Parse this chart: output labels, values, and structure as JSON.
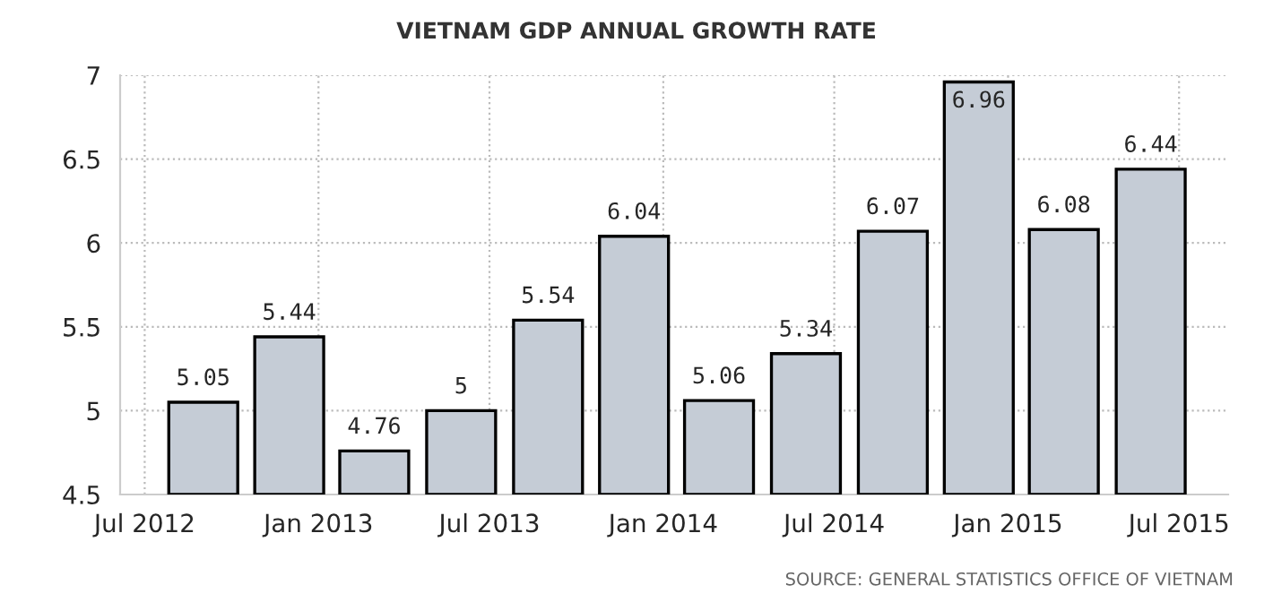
{
  "chart_data": {
    "type": "bar",
    "title": "VIETNAM GDP ANNUAL GROWTH RATE",
    "x": [
      "2012-09-01",
      "2012-12-01",
      "2013-03-01",
      "2013-06-01",
      "2013-09-01",
      "2013-12-01",
      "2014-03-01",
      "2014-06-01",
      "2014-09-01",
      "2014-12-01",
      "2015-03-01",
      "2015-06-01"
    ],
    "values": [
      5.05,
      5.44,
      4.76,
      5,
      5.54,
      6.04,
      5.06,
      5.34,
      6.07,
      6.96,
      6.08,
      6.44
    ],
    "color": "#c5ccd6",
    "data_labels": true,
    "xlim": [
      "2012-06-05",
      "2015-08-22"
    ],
    "xticks": [
      {
        "value": "2012-07-01",
        "label": "Jul 2012"
      },
      {
        "value": "2013-01-01",
        "label": "Jan 2013"
      },
      {
        "value": "2013-07-01",
        "label": "Jul 2013"
      },
      {
        "value": "2014-01-01",
        "label": "Jan 2014"
      },
      {
        "value": "2014-07-01",
        "label": "Jul 2014"
      },
      {
        "value": "2015-01-01",
        "label": "Jan 2015"
      },
      {
        "value": "2015-07-01",
        "label": "Jul 2015"
      }
    ],
    "ylim": [
      4.5,
      7
    ],
    "yticks": [
      4.5,
      5,
      5.5,
      6,
      6.5,
      7
    ],
    "grid": true,
    "annotations": [
      "SOURCE: GENERAL STATISTICS OFFICE OF VIETNAM"
    ]
  }
}
